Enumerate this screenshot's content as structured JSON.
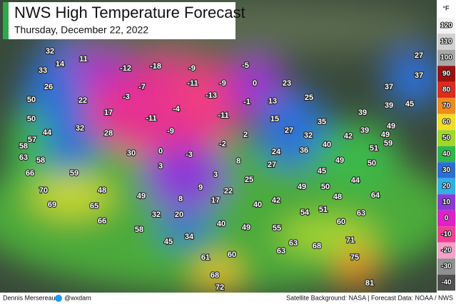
{
  "header": {
    "title": "NWS High Temperature Forecast",
    "date": "Thursday, December 22, 2022"
  },
  "legend": {
    "unit": "°F",
    "ticks": [
      120,
      110,
      100,
      90,
      80,
      70,
      60,
      50,
      40,
      30,
      20,
      10,
      0,
      -10,
      -20,
      -30,
      -40
    ],
    "colors": [
      "#f2f2f2",
      "#d0d0d0",
      "#a8a8a8",
      "#9c1010",
      "#e02a1a",
      "#f08a1e",
      "#f2dc28",
      "#9ed82a",
      "#2fb84a",
      "#2a6fd8",
      "#2fb0e8",
      "#8a3ad8",
      "#e020c8",
      "#f04090",
      "#f4a0c8",
      "#909090",
      "#505050"
    ]
  },
  "map": {
    "temperatures": [
      32,
      11,
      14,
      33,
      -12,
      -18,
      -9,
      -5,
      27,
      37,
      26,
      -7,
      -11,
      -9,
      0,
      23,
      37,
      50,
      22,
      -3,
      -13,
      -1,
      13,
      25,
      39,
      45,
      17,
      -4,
      50,
      -11,
      -11,
      15,
      35,
      39,
      49,
      44,
      32,
      28,
      -9,
      2,
      27,
      32,
      42,
      39,
      49,
      57,
      58,
      63,
      58,
      30,
      0,
      -3,
      -2,
      8,
      24,
      36,
      40,
      51,
      59,
      3,
      27,
      49,
      50,
      66,
      59,
      3,
      25,
      45,
      70,
      48,
      9,
      22,
      49,
      50,
      44,
      64,
      49,
      8,
      17,
      48,
      69,
      65,
      40,
      42,
      32,
      20,
      54,
      51,
      66,
      40,
      63,
      58,
      49,
      55,
      60,
      34,
      45,
      71,
      63,
      68,
      61,
      60,
      63,
      75,
      68,
      72,
      81
    ]
  },
  "footer": {
    "author": "Dennis Mersereau",
    "handle": "@wxdam",
    "credits": "Satellite Background: NASA | Forecast Data: NOAA / NWS"
  }
}
